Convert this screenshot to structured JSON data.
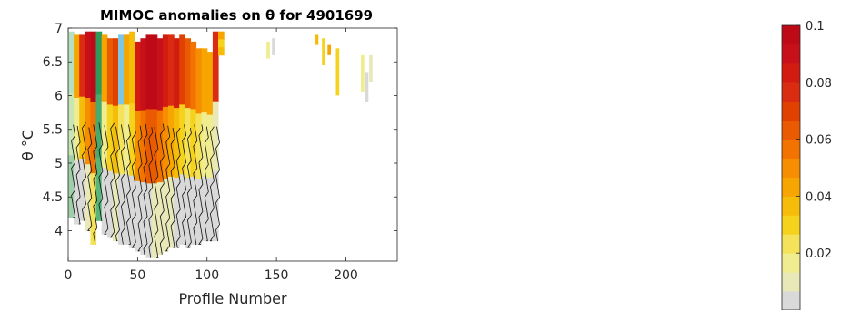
{
  "chart_data": {
    "type": "heatmap",
    "title": "MIMOC anomalies on θ  for 4901699",
    "xlabel": "Profile Number",
    "ylabel": "θ °C",
    "xlim": [
      0,
      237
    ],
    "ylim": [
      3.55,
      7.0
    ],
    "xticks": [
      0,
      50,
      100,
      150,
      200
    ],
    "yticks": [
      4,
      4.5,
      5,
      5.5,
      6,
      6.5,
      7
    ],
    "colorbar": {
      "range": [
        0,
        0.1
      ],
      "ticks": [
        0.02,
        0.04,
        0.06,
        0.08,
        0.1
      ],
      "levels": [
        "#d9d9d9",
        "#e8e8b8",
        "#f0ec90",
        "#f4e35a",
        "#f5d21c",
        "#f5bd0a",
        "#f7a500",
        "#f78d00",
        "#f27300",
        "#ea5a00",
        "#e04000",
        "#d92c10",
        "#d21c12",
        "#c8101a",
        "#be0a16"
      ]
    },
    "columns": [
      {
        "x": 2,
        "ymin": 4.2,
        "ymax": 6.95,
        "lo": "#9fcfa8",
        "mid": "#c8e6b5",
        "hi": "#b6dfc1"
      },
      {
        "x": 6,
        "ymin": 4.1,
        "ymax": 6.9,
        "lo": "#d9d9d9",
        "mid": "#f0ec90",
        "hi": "#f7a500"
      },
      {
        "x": 10,
        "ymin": 4.15,
        "ymax": 6.9,
        "lo": "#d9d9d9",
        "mid": "#f5bd0a",
        "hi": "#d92c10"
      },
      {
        "x": 14,
        "ymin": 4.0,
        "ymax": 6.95,
        "lo": "#e8e8b8",
        "mid": "#f78d00",
        "hi": "#c8101a"
      },
      {
        "x": 18,
        "ymin": 3.8,
        "ymax": 6.95,
        "lo": "#f4e35a",
        "mid": "#f27300",
        "hi": "#be0a16"
      },
      {
        "x": 22,
        "ymin": 4.15,
        "ymax": 6.95,
        "lo": "#5ab57a",
        "mid": "#4aa96c",
        "hi": "#2e9a5a"
      },
      {
        "x": 26,
        "ymin": 3.95,
        "ymax": 6.9,
        "lo": "#d9d9d9",
        "mid": "#f0ec90",
        "hi": "#f7a500"
      },
      {
        "x": 30,
        "ymin": 3.9,
        "ymax": 6.85,
        "lo": "#d9d9d9",
        "mid": "#f5d21c",
        "hi": "#ea5a00"
      },
      {
        "x": 34,
        "ymin": 3.85,
        "ymax": 6.85,
        "lo": "#e8e8b8",
        "mid": "#f5bd0a",
        "hi": "#e04000"
      },
      {
        "x": 38,
        "ymin": 3.8,
        "ymax": 6.9,
        "lo": "#d9d9d9",
        "mid": "#f4e35a",
        "hi": "#7fc6e0"
      },
      {
        "x": 42,
        "ymin": 3.8,
        "ymax": 6.9,
        "lo": "#d9d9d9",
        "mid": "#f0ec90",
        "hi": "#f7a500"
      },
      {
        "x": 46,
        "ymin": 3.75,
        "ymax": 6.95,
        "lo": "#d9d9d9",
        "mid": "#f5d21c",
        "hi": "#f5bd0a"
      },
      {
        "x": 50,
        "ymin": 3.7,
        "ymax": 6.8,
        "lo": "#d9d9d9",
        "mid": "#f78d00",
        "hi": "#d21c12"
      },
      {
        "x": 54,
        "ymin": 3.65,
        "ymax": 6.85,
        "lo": "#d9d9d9",
        "mid": "#f27300",
        "hi": "#c8101a"
      },
      {
        "x": 58,
        "ymin": 3.6,
        "ymax": 6.9,
        "lo": "#d9d9d9",
        "mid": "#ea5a00",
        "hi": "#be0a16"
      },
      {
        "x": 62,
        "ymin": 3.6,
        "ymax": 6.9,
        "lo": "#e8e8b8",
        "mid": "#ea5a00",
        "hi": "#be0a16"
      },
      {
        "x": 66,
        "ymin": 3.65,
        "ymax": 6.85,
        "lo": "#e8e8b8",
        "mid": "#f27300",
        "hi": "#c8101a"
      },
      {
        "x": 70,
        "ymin": 3.7,
        "ymax": 6.9,
        "lo": "#e8e8b8",
        "mid": "#f78d00",
        "hi": "#d21c12"
      },
      {
        "x": 74,
        "ymin": 3.75,
        "ymax": 6.9,
        "lo": "#e8e8b8",
        "mid": "#f7a500",
        "hi": "#d92c10"
      },
      {
        "x": 78,
        "ymin": 3.75,
        "ymax": 6.85,
        "lo": "#d9d9d9",
        "mid": "#f5bd0a",
        "hi": "#d21c12"
      },
      {
        "x": 82,
        "ymin": 3.8,
        "ymax": 6.9,
        "lo": "#d9d9d9",
        "mid": "#f5d21c",
        "hi": "#e04000"
      },
      {
        "x": 86,
        "ymin": 3.75,
        "ymax": 6.85,
        "lo": "#d9d9d9",
        "mid": "#f4e35a",
        "hi": "#ea5a00"
      },
      {
        "x": 90,
        "ymin": 3.8,
        "ymax": 6.8,
        "lo": "#d9d9d9",
        "mid": "#f5d21c",
        "hi": "#f27300"
      },
      {
        "x": 94,
        "ymin": 3.8,
        "ymax": 6.7,
        "lo": "#d9d9d9",
        "mid": "#f4e35a",
        "hi": "#f78d00"
      },
      {
        "x": 98,
        "ymin": 3.85,
        "ymax": 6.7,
        "lo": "#d9d9d9",
        "mid": "#f0ec90",
        "hi": "#f7a500"
      },
      {
        "x": 102,
        "ymin": 3.85,
        "ymax": 6.65,
        "lo": "#d9d9d9",
        "mid": "#f0ec90",
        "hi": "#f7a500"
      },
      {
        "x": 106,
        "ymin": 3.85,
        "ymax": 6.95,
        "lo": "#d9d9d9",
        "mid": "#e8e8b8",
        "hi": "#d92c10"
      },
      {
        "x": 110,
        "ymin": 6.6,
        "ymax": 6.95,
        "lo": "#f5bd0a",
        "mid": "#f5d21c",
        "hi": "#f7a500"
      }
    ],
    "patches": [
      {
        "x": 144,
        "ymin": 6.55,
        "ymax": 6.8,
        "color": "#f0ec90"
      },
      {
        "x": 148,
        "ymin": 6.6,
        "ymax": 6.85,
        "color": "#d9d9d9"
      },
      {
        "x": 179,
        "ymin": 6.75,
        "ymax": 6.9,
        "color": "#f5bd0a"
      },
      {
        "x": 184,
        "ymin": 6.45,
        "ymax": 6.85,
        "color": "#f5d21c"
      },
      {
        "x": 188,
        "ymin": 6.6,
        "ymax": 6.75,
        "color": "#f7a500"
      },
      {
        "x": 194,
        "ymin": 6.0,
        "ymax": 6.7,
        "color": "#f5d21c"
      },
      {
        "x": 212,
        "ymin": 6.05,
        "ymax": 6.6,
        "color": "#f0ec90"
      },
      {
        "x": 215,
        "ymin": 5.9,
        "ymax": 6.35,
        "color": "#d9d9d9"
      },
      {
        "x": 218,
        "ymin": 6.2,
        "ymax": 6.6,
        "color": "#e8e8b8"
      }
    ]
  }
}
